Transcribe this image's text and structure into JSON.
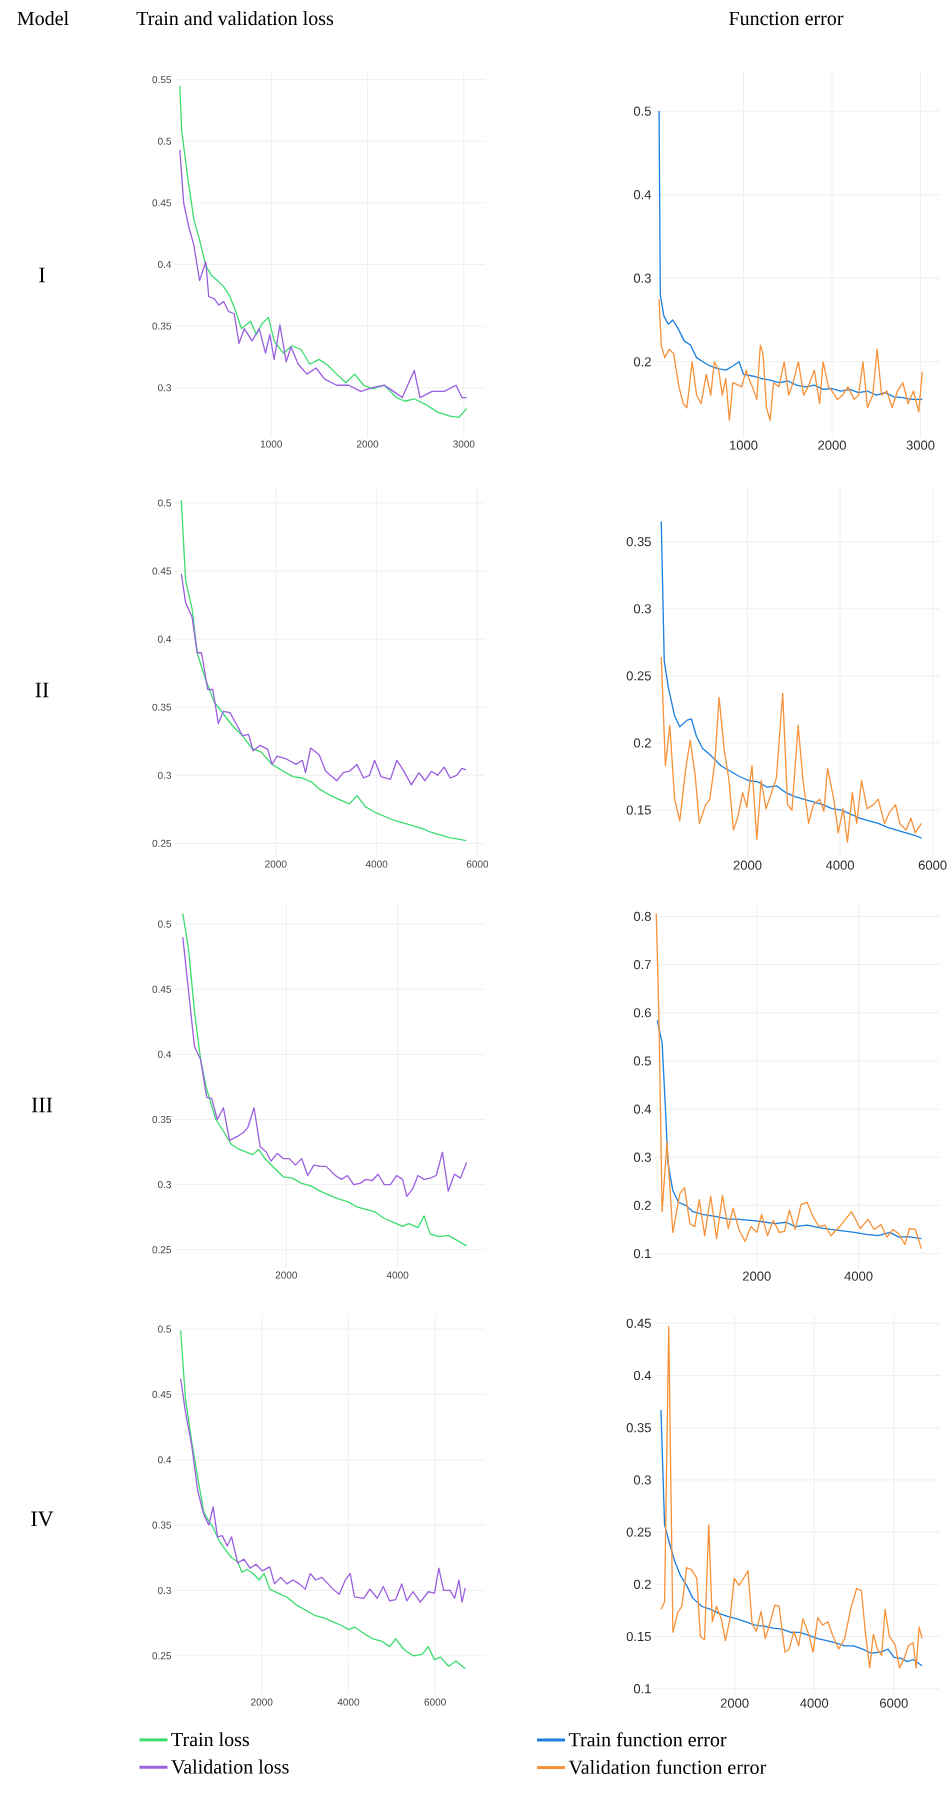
{
  "chart_data": [
    {
      "type": "line",
      "title": "Train and validation loss",
      "ylabel": "I",
      "annotations": [
        "Model"
      ],
      "xlim": [
        0,
        3220
      ],
      "ylim": [
        0.26,
        0.557
      ],
      "xticks": [
        1000,
        2000,
        3000
      ],
      "yticks": [
        0.3,
        0.35,
        0.4,
        0.45,
        0.5,
        0.55
      ],
      "grid": true,
      "series": [
        {
          "color": "#3ddc6f",
          "x": [
            50,
            70,
            135,
            195,
            255,
            320,
            380,
            440,
            505,
            565,
            630,
            690,
            785,
            845,
            905,
            970,
            1030,
            1125,
            1215,
            1310,
            1400,
            1495,
            1590,
            1680,
            1775,
            1865,
            1960,
            2050,
            2175,
            2300,
            2390,
            2485,
            2610,
            2735,
            2855,
            2950,
            3030
          ],
          "values": [
            0.545,
            0.508,
            0.469,
            0.437,
            0.42,
            0.399,
            0.391,
            0.387,
            0.382,
            0.375,
            0.362,
            0.348,
            0.354,
            0.343,
            0.352,
            0.357,
            0.338,
            0.328,
            0.334,
            0.331,
            0.319,
            0.323,
            0.318,
            0.311,
            0.304,
            0.311,
            0.302,
            0.299,
            0.302,
            0.292,
            0.289,
            0.291,
            0.286,
            0.28,
            0.277,
            0.276,
            0.283
          ]
        },
        {
          "color": "#9b5fe0",
          "x": [
            50,
            90,
            145,
            195,
            255,
            320,
            350,
            410,
            455,
            505,
            555,
            615,
            665,
            720,
            800,
            875,
            940,
            985,
            1030,
            1090,
            1155,
            1205,
            1280,
            1370,
            1465,
            1555,
            1680,
            1805,
            1930,
            2050,
            2175,
            2270,
            2360,
            2485,
            2545,
            2670,
            2795,
            2920,
            2980,
            3030
          ],
          "values": [
            0.493,
            0.45,
            0.43,
            0.416,
            0.387,
            0.402,
            0.374,
            0.372,
            0.367,
            0.37,
            0.362,
            0.36,
            0.336,
            0.348,
            0.338,
            0.348,
            0.328,
            0.343,
            0.323,
            0.351,
            0.321,
            0.333,
            0.319,
            0.311,
            0.316,
            0.307,
            0.302,
            0.302,
            0.297,
            0.3,
            0.302,
            0.297,
            0.292,
            0.314,
            0.292,
            0.297,
            0.297,
            0.302,
            0.292,
            0.292
          ]
        }
      ]
    },
    {
      "type": "line",
      "title": "Function error",
      "xlim": [
        0,
        3220
      ],
      "ylim": [
        0.11,
        0.548
      ],
      "xticks": [
        1000,
        2000,
        3000
      ],
      "yticks": [
        0.2,
        0.3,
        0.4,
        0.5
      ],
      "grid": true,
      "series": [
        {
          "color": "#1a7fe0",
          "x": [
            46,
            60,
            100,
            150,
            200,
            260,
            330,
            400,
            470,
            540,
            620,
            700,
            800,
            880,
            950,
            1000,
            1100,
            1200,
            1300,
            1400,
            1500,
            1600,
            1700,
            1800,
            1900,
            2000,
            2100,
            2200,
            2300,
            2400,
            2500,
            2600,
            2700,
            2800,
            2900,
            3020
          ],
          "values": [
            0.5,
            0.28,
            0.255,
            0.245,
            0.25,
            0.24,
            0.225,
            0.22,
            0.205,
            0.2,
            0.195,
            0.192,
            0.19,
            0.195,
            0.2,
            0.185,
            0.183,
            0.18,
            0.178,
            0.175,
            0.177,
            0.172,
            0.17,
            0.172,
            0.167,
            0.168,
            0.165,
            0.167,
            0.163,
            0.165,
            0.16,
            0.163,
            0.158,
            0.157,
            0.155,
            0.155
          ]
        },
        {
          "color": "#f7923a",
          "x": [
            46,
            70,
            110,
            160,
            210,
            270,
            320,
            360,
            420,
            470,
            520,
            580,
            630,
            670,
            720,
            760,
            800,
            840,
            880,
            940,
            980,
            1030,
            1060,
            1100,
            1150,
            1190,
            1220,
            1260,
            1300,
            1340,
            1400,
            1460,
            1510,
            1560,
            1620,
            1680,
            1730,
            1800,
            1860,
            1900,
            1960,
            2000,
            2060,
            2120,
            2180,
            2250,
            2300,
            2350,
            2400,
            2460,
            2510,
            2560,
            2620,
            2680,
            2740,
            2800,
            2860,
            2920,
            2980,
            3020
          ],
          "values": [
            0.275,
            0.22,
            0.205,
            0.215,
            0.21,
            0.17,
            0.15,
            0.145,
            0.2,
            0.16,
            0.15,
            0.185,
            0.16,
            0.2,
            0.19,
            0.16,
            0.18,
            0.13,
            0.175,
            0.172,
            0.17,
            0.19,
            0.18,
            0.17,
            0.155,
            0.22,
            0.21,
            0.145,
            0.13,
            0.175,
            0.17,
            0.2,
            0.16,
            0.175,
            0.2,
            0.16,
            0.17,
            0.19,
            0.15,
            0.2,
            0.17,
            0.165,
            0.155,
            0.16,
            0.17,
            0.155,
            0.16,
            0.2,
            0.145,
            0.16,
            0.215,
            0.16,
            0.165,
            0.145,
            0.165,
            0.175,
            0.15,
            0.165,
            0.14,
            0.188
          ]
        }
      ]
    },
    {
      "type": "line",
      "ylabel": "II",
      "xlim": [
        0,
        6150
      ],
      "ylim": [
        0.24,
        0.511
      ],
      "xticks": [
        2000,
        4000,
        6000
      ],
      "yticks": [
        0.25,
        0.3,
        0.35,
        0.4,
        0.45,
        0.5
      ],
      "grid": true,
      "series": [
        {
          "color": "#3ddc6f",
          "x": [
            125,
            210,
            340,
            440,
            590,
            775,
            960,
            1150,
            1340,
            1525,
            1710,
            1925,
            2150,
            2340,
            2525,
            2710,
            2860,
            3090,
            3275,
            3460,
            3610,
            3775,
            3960,
            4150,
            4340,
            4525,
            4710,
            4900,
            5090,
            5275,
            5460,
            5650,
            5775
          ],
          "values": [
            0.502,
            0.443,
            0.422,
            0.39,
            0.372,
            0.354,
            0.345,
            0.336,
            0.329,
            0.32,
            0.317,
            0.308,
            0.303,
            0.299,
            0.298,
            0.295,
            0.29,
            0.285,
            0.282,
            0.279,
            0.285,
            0.277,
            0.273,
            0.27,
            0.267,
            0.265,
            0.263,
            0.261,
            0.258,
            0.256,
            0.254,
            0.253,
            0.252
          ]
        },
        {
          "color": "#9b5fe0",
          "x": [
            125,
            210,
            340,
            440,
            525,
            650,
            750,
            860,
            960,
            1090,
            1210,
            1340,
            1460,
            1550,
            1690,
            1840,
            1925,
            2025,
            2210,
            2400,
            2525,
            2590,
            2690,
            2860,
            2990,
            3210,
            3340,
            3460,
            3610,
            3740,
            3860,
            3960,
            4090,
            4275,
            4400,
            4525,
            4690,
            4840,
            4960,
            5090,
            5210,
            5340,
            5460,
            5590,
            5690,
            5775
          ],
          "values": [
            0.448,
            0.427,
            0.416,
            0.39,
            0.39,
            0.363,
            0.363,
            0.338,
            0.347,
            0.346,
            0.338,
            0.329,
            0.33,
            0.318,
            0.322,
            0.319,
            0.308,
            0.314,
            0.312,
            0.308,
            0.311,
            0.302,
            0.32,
            0.315,
            0.303,
            0.296,
            0.302,
            0.303,
            0.308,
            0.298,
            0.3,
            0.311,
            0.299,
            0.297,
            0.311,
            0.304,
            0.293,
            0.302,
            0.296,
            0.303,
            0.3,
            0.306,
            0.298,
            0.3,
            0.305,
            0.304
          ]
        }
      ]
    },
    {
      "type": "line",
      "xlim": [
        0,
        6160
      ],
      "ylim": [
        0.115,
        0.39
      ],
      "xticks": [
        2000,
        4000,
        6000
      ],
      "yticks": [
        0.15,
        0.2,
        0.25,
        0.3,
        0.35
      ],
      "grid": true,
      "series": [
        {
          "color": "#1a7fe0",
          "x": [
            135,
            200,
            290,
            425,
            535,
            695,
            785,
            895,
            1025,
            1225,
            1425,
            1625,
            1825,
            2025,
            2225,
            2425,
            2625,
            2825,
            3025,
            3225,
            3425,
            3625,
            3825,
            4025,
            4225,
            4425,
            4625,
            4825,
            5025,
            5225,
            5425,
            5625,
            5760
          ],
          "values": [
            0.365,
            0.261,
            0.241,
            0.22,
            0.212,
            0.217,
            0.218,
            0.205,
            0.196,
            0.19,
            0.183,
            0.179,
            0.175,
            0.172,
            0.171,
            0.167,
            0.168,
            0.163,
            0.16,
            0.158,
            0.156,
            0.154,
            0.151,
            0.15,
            0.147,
            0.144,
            0.142,
            0.14,
            0.137,
            0.135,
            0.133,
            0.131,
            0.129
          ]
        },
        {
          "color": "#f7923a",
          "x": [
            135,
            225,
            320,
            425,
            535,
            665,
            760,
            865,
            960,
            1095,
            1185,
            1295,
            1385,
            1495,
            1600,
            1695,
            1785,
            1895,
            1985,
            2095,
            2200,
            2295,
            2400,
            2520,
            2625,
            2760,
            2865,
            2960,
            3095,
            3200,
            3320,
            3425,
            3560,
            3650,
            3730,
            3865,
            3960,
            4065,
            4160,
            4265,
            4360,
            4465,
            4585,
            4720,
            4825,
            4960,
            5065,
            5200,
            5290,
            5425,
            5530,
            5625,
            5760
          ],
          "values": [
            0.264,
            0.183,
            0.213,
            0.158,
            0.142,
            0.181,
            0.202,
            0.177,
            0.14,
            0.154,
            0.158,
            0.186,
            0.234,
            0.195,
            0.172,
            0.135,
            0.144,
            0.163,
            0.152,
            0.183,
            0.128,
            0.172,
            0.151,
            0.163,
            0.174,
            0.237,
            0.154,
            0.15,
            0.213,
            0.172,
            0.14,
            0.154,
            0.158,
            0.149,
            0.181,
            0.158,
            0.133,
            0.151,
            0.126,
            0.163,
            0.14,
            0.172,
            0.151,
            0.154,
            0.158,
            0.14,
            0.148,
            0.154,
            0.14,
            0.135,
            0.144,
            0.133,
            0.14
          ]
        }
      ]
    },
    {
      "type": "line",
      "ylabel": "III",
      "xlim": [
        0,
        5570
      ],
      "ylim": [
        0.236,
        0.517
      ],
      "xticks": [
        2000,
        4000
      ],
      "yticks": [
        0.25,
        0.3,
        0.35,
        0.4,
        0.45,
        0.5
      ],
      "grid": true,
      "series": [
        {
          "color": "#3ddc6f",
          "x": [
            140,
            240,
            350,
            460,
            570,
            735,
            870,
            1010,
            1155,
            1285,
            1395,
            1505,
            1615,
            1780,
            1945,
            2110,
            2275,
            2440,
            2605,
            2770,
            2935,
            3100,
            3265,
            3430,
            3595,
            3760,
            3925,
            4090,
            4200,
            4365,
            4475,
            4585,
            4750,
            4910,
            5075,
            5240
          ],
          "values": [
            0.508,
            0.482,
            0.433,
            0.396,
            0.373,
            0.35,
            0.341,
            0.331,
            0.327,
            0.325,
            0.323,
            0.327,
            0.32,
            0.313,
            0.306,
            0.305,
            0.301,
            0.299,
            0.295,
            0.292,
            0.289,
            0.287,
            0.283,
            0.281,
            0.279,
            0.274,
            0.271,
            0.268,
            0.27,
            0.267,
            0.276,
            0.262,
            0.26,
            0.261,
            0.257,
            0.253
          ]
        },
        {
          "color": "#9b5fe0",
          "x": [
            140,
            350,
            460,
            570,
            660,
            760,
            870,
            980,
            1120,
            1230,
            1310,
            1420,
            1530,
            1640,
            1725,
            1835,
            1945,
            2055,
            2165,
            2275,
            2385,
            2495,
            2605,
            2715,
            2880,
            2990,
            3100,
            3210,
            3320,
            3430,
            3540,
            3650,
            3760,
            3870,
            3980,
            4090,
            4165,
            4275,
            4365,
            4475,
            4585,
            4695,
            4805,
            4910,
            5020,
            5130,
            5240
          ],
          "values": [
            0.49,
            0.406,
            0.396,
            0.367,
            0.366,
            0.35,
            0.359,
            0.334,
            0.337,
            0.34,
            0.344,
            0.359,
            0.329,
            0.325,
            0.318,
            0.324,
            0.32,
            0.32,
            0.315,
            0.32,
            0.307,
            0.315,
            0.314,
            0.314,
            0.307,
            0.304,
            0.307,
            0.3,
            0.301,
            0.304,
            0.303,
            0.308,
            0.3,
            0.3,
            0.307,
            0.304,
            0.291,
            0.297,
            0.307,
            0.304,
            0.305,
            0.307,
            0.325,
            0.295,
            0.308,
            0.305,
            0.317
          ]
        }
      ]
    },
    {
      "type": "line",
      "xlim": [
        0,
        5600
      ],
      "ylim": [
        0.07,
        0.83
      ],
      "xticks": [
        2000,
        4000
      ],
      "yticks": [
        0.1,
        0.2,
        0.3,
        0.4,
        0.5,
        0.6,
        0.7,
        0.8
      ],
      "grid": true,
      "series": [
        {
          "color": "#1a7fe0",
          "x": [
            45,
            140,
            200,
            255,
            350,
            465,
            605,
            745,
            955,
            1185,
            1420,
            1650,
            1885,
            2115,
            2350,
            2580,
            2755,
            2990,
            3220,
            3455,
            3685,
            3920,
            4150,
            4385,
            4615,
            4790,
            4965,
            5235
          ],
          "values": [
            0.584,
            0.537,
            0.412,
            0.287,
            0.231,
            0.206,
            0.2,
            0.187,
            0.181,
            0.177,
            0.172,
            0.171,
            0.169,
            0.166,
            0.162,
            0.165,
            0.156,
            0.159,
            0.154,
            0.15,
            0.147,
            0.144,
            0.14,
            0.137,
            0.144,
            0.134,
            0.135,
            0.131
          ]
        },
        {
          "color": "#f7923a",
          "x": [
            25,
            80,
            140,
            235,
            350,
            490,
            580,
            685,
            780,
            870,
            975,
            1095,
            1210,
            1325,
            1440,
            1535,
            1650,
            1770,
            1885,
            2000,
            2095,
            2210,
            2325,
            2440,
            2545,
            2640,
            2755,
            2870,
            2990,
            3105,
            3220,
            3340,
            3455,
            3630,
            3860,
            4035,
            4185,
            4305,
            4440,
            4560,
            4675,
            4790,
            4910,
            5000,
            5115,
            5235
          ],
          "values": [
            0.806,
            0.575,
            0.187,
            0.331,
            0.144,
            0.225,
            0.237,
            0.162,
            0.156,
            0.212,
            0.137,
            0.219,
            0.131,
            0.221,
            0.152,
            0.194,
            0.15,
            0.125,
            0.156,
            0.144,
            0.181,
            0.137,
            0.169,
            0.144,
            0.146,
            0.19,
            0.15,
            0.202,
            0.206,
            0.177,
            0.156,
            0.159,
            0.137,
            0.156,
            0.187,
            0.152,
            0.171,
            0.15,
            0.16,
            0.134,
            0.15,
            0.141,
            0.119,
            0.152,
            0.15,
            0.11
          ]
        }
      ]
    },
    {
      "type": "line",
      "ylabel": "IV",
      "legend": "bottom",
      "xlim": [
        0,
        7150
      ],
      "ylim": [
        0.22,
        0.51
      ],
      "xticks": [
        2000,
        4000,
        6000
      ],
      "yticks": [
        0.25,
        0.3,
        0.35,
        0.4,
        0.45,
        0.5
      ],
      "grid": true,
      "series": [
        {
          "name": "Train loss",
          "color": "#3ddc6f",
          "x": [
            130,
            240,
            385,
            525,
            665,
            780,
            880,
            1020,
            1165,
            1305,
            1445,
            1545,
            1660,
            1800,
            1940,
            2055,
            2185,
            2370,
            2580,
            2795,
            3005,
            3220,
            3430,
            3645,
            3855,
            4000,
            4140,
            4355,
            4565,
            4780,
            4950,
            5090,
            5275,
            5490,
            5700,
            5840,
            5985,
            6125,
            6310,
            6480,
            6695
          ],
          "values": [
            0.499,
            0.447,
            0.414,
            0.386,
            0.36,
            0.353,
            0.348,
            0.338,
            0.331,
            0.325,
            0.322,
            0.314,
            0.316,
            0.313,
            0.308,
            0.313,
            0.301,
            0.298,
            0.295,
            0.289,
            0.285,
            0.281,
            0.279,
            0.276,
            0.273,
            0.27,
            0.272,
            0.267,
            0.263,
            0.261,
            0.257,
            0.263,
            0.255,
            0.25,
            0.251,
            0.257,
            0.247,
            0.249,
            0.242,
            0.246,
            0.24
          ]
        },
        {
          "name": "Validation loss",
          "color": "#9b5fe0",
          "x": [
            130,
            240,
            385,
            525,
            665,
            780,
            880,
            980,
            1090,
            1205,
            1305,
            1445,
            1590,
            1730,
            1870,
            2015,
            2185,
            2295,
            2440,
            2580,
            2720,
            2865,
            3005,
            3120,
            3245,
            3390,
            3530,
            3645,
            3785,
            3930,
            4040,
            4140,
            4355,
            4495,
            4665,
            4805,
            4950,
            5090,
            5230,
            5345,
            5490,
            5660,
            5840,
            5985,
            6085,
            6195,
            6340,
            6450,
            6550,
            6620,
            6695
          ],
          "values": [
            0.462,
            0.437,
            0.411,
            0.376,
            0.358,
            0.35,
            0.364,
            0.341,
            0.342,
            0.334,
            0.341,
            0.321,
            0.324,
            0.317,
            0.32,
            0.315,
            0.318,
            0.305,
            0.31,
            0.305,
            0.308,
            0.305,
            0.301,
            0.313,
            0.308,
            0.31,
            0.305,
            0.301,
            0.297,
            0.308,
            0.313,
            0.295,
            0.294,
            0.301,
            0.294,
            0.303,
            0.292,
            0.293,
            0.305,
            0.292,
            0.299,
            0.291,
            0.299,
            0.298,
            0.317,
            0.3,
            0.3,
            0.294,
            0.308,
            0.291,
            0.302
          ]
        }
      ]
    },
    {
      "type": "line",
      "legend": "bottom",
      "xlim": [
        0,
        7160
      ],
      "ylim": [
        0.094,
        0.457
      ],
      "xticks": [
        2000,
        4000,
        6000
      ],
      "yticks": [
        0.1,
        0.15,
        0.2,
        0.25,
        0.3,
        0.35,
        0.4,
        0.45
      ],
      "grid": true,
      "series": [
        {
          "name": "Train function error",
          "color": "#1a7fe0",
          "x": [
            150,
            240,
            345,
            495,
            645,
            795,
            945,
            1170,
            1395,
            1620,
            1840,
            2065,
            2290,
            2515,
            2740,
            2965,
            3190,
            3415,
            3640,
            3865,
            4090,
            4315,
            4540,
            4765,
            4990,
            5215,
            5440,
            5660,
            5855,
            6005,
            6185,
            6335,
            6485,
            6710
          ],
          "values": [
            0.367,
            0.257,
            0.242,
            0.222,
            0.208,
            0.199,
            0.187,
            0.179,
            0.176,
            0.172,
            0.169,
            0.167,
            0.164,
            0.161,
            0.16,
            0.158,
            0.157,
            0.154,
            0.154,
            0.151,
            0.148,
            0.146,
            0.144,
            0.141,
            0.141,
            0.138,
            0.134,
            0.135,
            0.138,
            0.13,
            0.129,
            0.126,
            0.128,
            0.122
          ]
        },
        {
          "name": "Validation function error",
          "color": "#f7923a",
          "x": [
            150,
            240,
            345,
            450,
            570,
            675,
            795,
            915,
            1050,
            1140,
            1245,
            1350,
            1440,
            1545,
            1665,
            1770,
            1890,
            1990,
            2110,
            2245,
            2335,
            2440,
            2545,
            2665,
            2770,
            2890,
            3010,
            3115,
            3265,
            3370,
            3490,
            3610,
            3715,
            3865,
            3970,
            4090,
            4210,
            4345,
            4465,
            4615,
            4765,
            4915,
            5065,
            5185,
            5290,
            5395,
            5485,
            5590,
            5695,
            5780,
            5890,
            6035,
            6140,
            6260,
            6365,
            6485,
            6560,
            6635,
            6710
          ],
          "values": [
            0.176,
            0.183,
            0.447,
            0.154,
            0.173,
            0.179,
            0.216,
            0.214,
            0.206,
            0.15,
            0.147,
            0.257,
            0.164,
            0.179,
            0.167,
            0.146,
            0.168,
            0.206,
            0.199,
            0.207,
            0.213,
            0.162,
            0.155,
            0.174,
            0.148,
            0.163,
            0.18,
            0.179,
            0.135,
            0.138,
            0.155,
            0.141,
            0.167,
            0.152,
            0.135,
            0.168,
            0.161,
            0.164,
            0.151,
            0.138,
            0.148,
            0.176,
            0.196,
            0.194,
            0.152,
            0.12,
            0.152,
            0.138,
            0.132,
            0.176,
            0.15,
            0.142,
            0.12,
            0.129,
            0.141,
            0.144,
            0.12,
            0.159,
            0.148
          ]
        }
      ]
    }
  ]
}
